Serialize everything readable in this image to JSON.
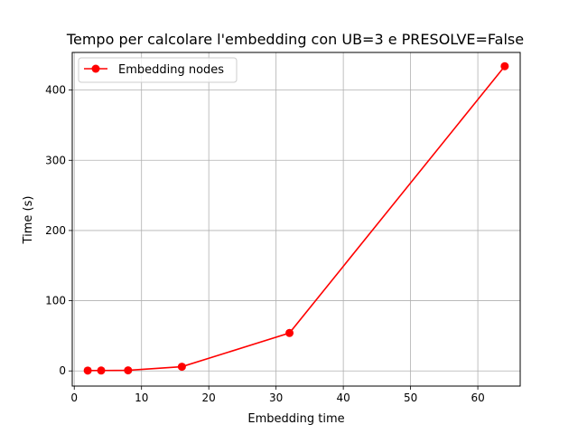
{
  "chart_data": {
    "type": "line",
    "title": "Tempo per calcolare l'embedding con UB=3 e PRESOLVE=False",
    "xlabel": "Embedding time",
    "ylabel": "Time (s)",
    "xlim": [
      -0.3,
      66.3
    ],
    "ylim": [
      -21.6,
      453.6
    ],
    "xticks": [
      0,
      10,
      20,
      30,
      40,
      50,
      60
    ],
    "yticks": [
      0,
      100,
      200,
      300,
      400
    ],
    "grid": true,
    "legend_position": "upper left",
    "series": [
      {
        "name": "Embedding nodes",
        "color": "#ff0000",
        "marker": "circle",
        "x": [
          2,
          4,
          8,
          16,
          32,
          64
        ],
        "y": [
          0.5,
          0.6,
          0.8,
          6,
          54,
          434
        ]
      }
    ]
  }
}
